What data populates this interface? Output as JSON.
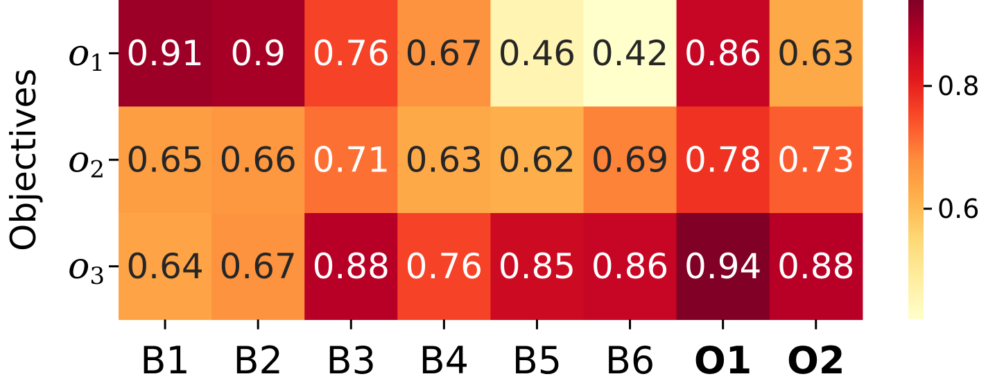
{
  "chart_data": {
    "type": "heatmap",
    "title": "",
    "xlabel": "",
    "ylabel": "Objectives",
    "x_categories": [
      "B1",
      "B2",
      "B3",
      "B4",
      "B5",
      "B6",
      "O1",
      "O2"
    ],
    "x_bold": [
      false,
      false,
      false,
      false,
      false,
      false,
      true,
      true
    ],
    "y_categories": [
      {
        "base": "o",
        "sub": "1"
      },
      {
        "base": "o",
        "sub": "2"
      },
      {
        "base": "o",
        "sub": "3"
      }
    ],
    "values": [
      [
        0.91,
        0.9,
        0.76,
        0.67,
        0.46,
        0.42,
        0.86,
        0.63
      ],
      [
        0.65,
        0.66,
        0.71,
        0.63,
        0.62,
        0.69,
        0.78,
        0.73
      ],
      [
        0.64,
        0.67,
        0.88,
        0.76,
        0.85,
        0.86,
        0.94,
        0.88
      ]
    ],
    "cell_labels": [
      [
        "0.91",
        "0.9",
        "0.76",
        "0.67",
        "0.46",
        "0.42",
        "0.86",
        "0.63"
      ],
      [
        "0.65",
        "0.66",
        "0.71",
        "0.63",
        "0.62",
        "0.69",
        "0.78",
        "0.73"
      ],
      [
        "0.64",
        "0.67",
        "0.88",
        "0.76",
        "0.85",
        "0.86",
        "0.94",
        "0.88"
      ]
    ],
    "colormap": "YlOrRd",
    "colorbar": {
      "vmin": 0.42,
      "vmax": 0.94,
      "ticks": [
        0.6,
        0.8
      ],
      "tick_labels": [
        "0.6",
        "0.8"
      ]
    },
    "legend": "colorbar-right",
    "grid": false,
    "annotation_text_colors": {
      "dark": "#262626",
      "light": "#ffffff"
    }
  }
}
